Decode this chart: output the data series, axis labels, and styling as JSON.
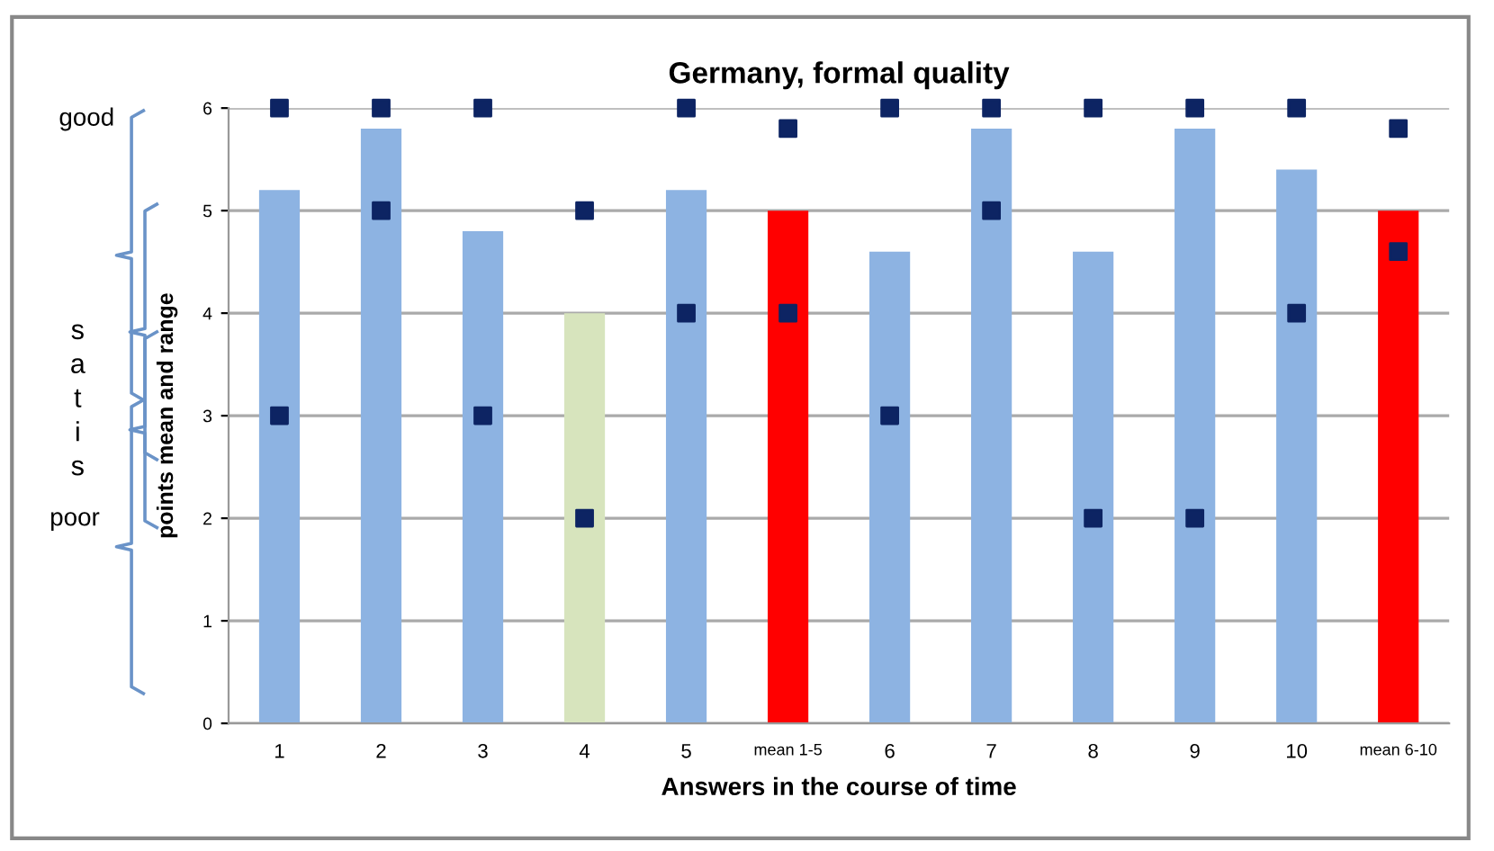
{
  "chart_data": {
    "type": "bar",
    "title": "Germany, formal quality",
    "xlabel": "Answers in the course of time",
    "ylabel": "points mean and range",
    "categories": [
      "1",
      "2",
      "3",
      "4",
      "5",
      "mean 1-5",
      "6",
      "7",
      "8",
      "9",
      "10",
      "mean 6-10"
    ],
    "series": [
      {
        "colors": [
          "#8db3e2",
          "#8db3e2",
          "#8db3e2",
          "#d7e4bd",
          "#8db3e2",
          "#ff0000",
          "#8db3e2",
          "#8db3e2",
          "#8db3e2",
          "#8db3e2",
          "#8db3e2",
          "#ff0000"
        ],
        "values": [
          5.2,
          5.8,
          4.8,
          4.0,
          5.2,
          5.0,
          4.6,
          5.8,
          4.6,
          5.8,
          5.4,
          5.0
        ]
      },
      {
        "type": "scatter",
        "color": "#0d2463",
        "marker": "square",
        "values": [
          6,
          6,
          6,
          5,
          6,
          5.8,
          6,
          6,
          6,
          6,
          6,
          5.8
        ]
      },
      {
        "type": "scatter",
        "color": "#0d2463",
        "marker": "square",
        "values": [
          3,
          5,
          3,
          2,
          4,
          4,
          3,
          5,
          2,
          2,
          4,
          4.6
        ]
      }
    ],
    "ylim": [
      0,
      6
    ],
    "yticks": [
      0,
      1,
      2,
      3,
      4,
      5,
      6
    ],
    "grid": "y",
    "legend": false,
    "annotations": [
      "good",
      "s",
      "a",
      "t",
      "i",
      "s",
      "poor"
    ]
  }
}
